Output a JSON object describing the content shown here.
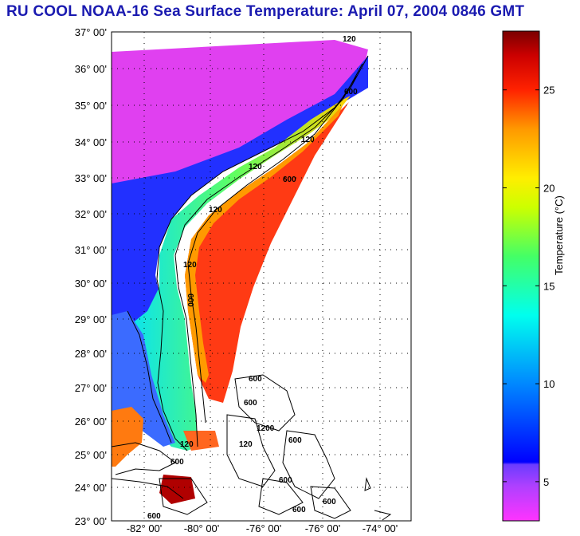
{
  "title": "RU COOL  NOAA-16  Sea Surface Temperature:  April 07, 2004 0846 GMT",
  "map": {
    "lat_labels": [
      "37° 00'",
      "36° 00'",
      "35° 00'",
      "34° 00'",
      "33° 00'",
      "32° 00'",
      "31° 00'",
      "30° 00'",
      "29° 00'",
      "28° 00'",
      "27° 00'",
      "26° 00'",
      "25° 00'",
      "24° 00'",
      "23° 00'"
    ],
    "lon_labels": [
      "-82° 00'",
      "-80° 00'",
      "-76° 00'",
      "-76° 00'",
      "-74° 00'"
    ],
    "contour_labels": [
      "120",
      "600",
      "120",
      "600",
      "120",
      "600",
      "120",
      "600",
      "600",
      "600",
      "120",
      "1200",
      "600",
      "120",
      "600",
      "120",
      "600",
      "600",
      "600"
    ]
  },
  "colorbar": {
    "title": "Temperature (°C)",
    "ticks": [
      {
        "value": 25,
        "label": "25"
      },
      {
        "value": 20,
        "label": "20"
      },
      {
        "value": 15,
        "label": "15"
      },
      {
        "value": 10,
        "label": "10"
      },
      {
        "value": 5,
        "label": "5"
      }
    ],
    "range": [
      3,
      28
    ]
  },
  "colors": {
    "title": "#1a1ab0",
    "land_low": "#ff44ff",
    "coast_blue": "#1e2aff",
    "gulf_red": "#ff3010"
  }
}
